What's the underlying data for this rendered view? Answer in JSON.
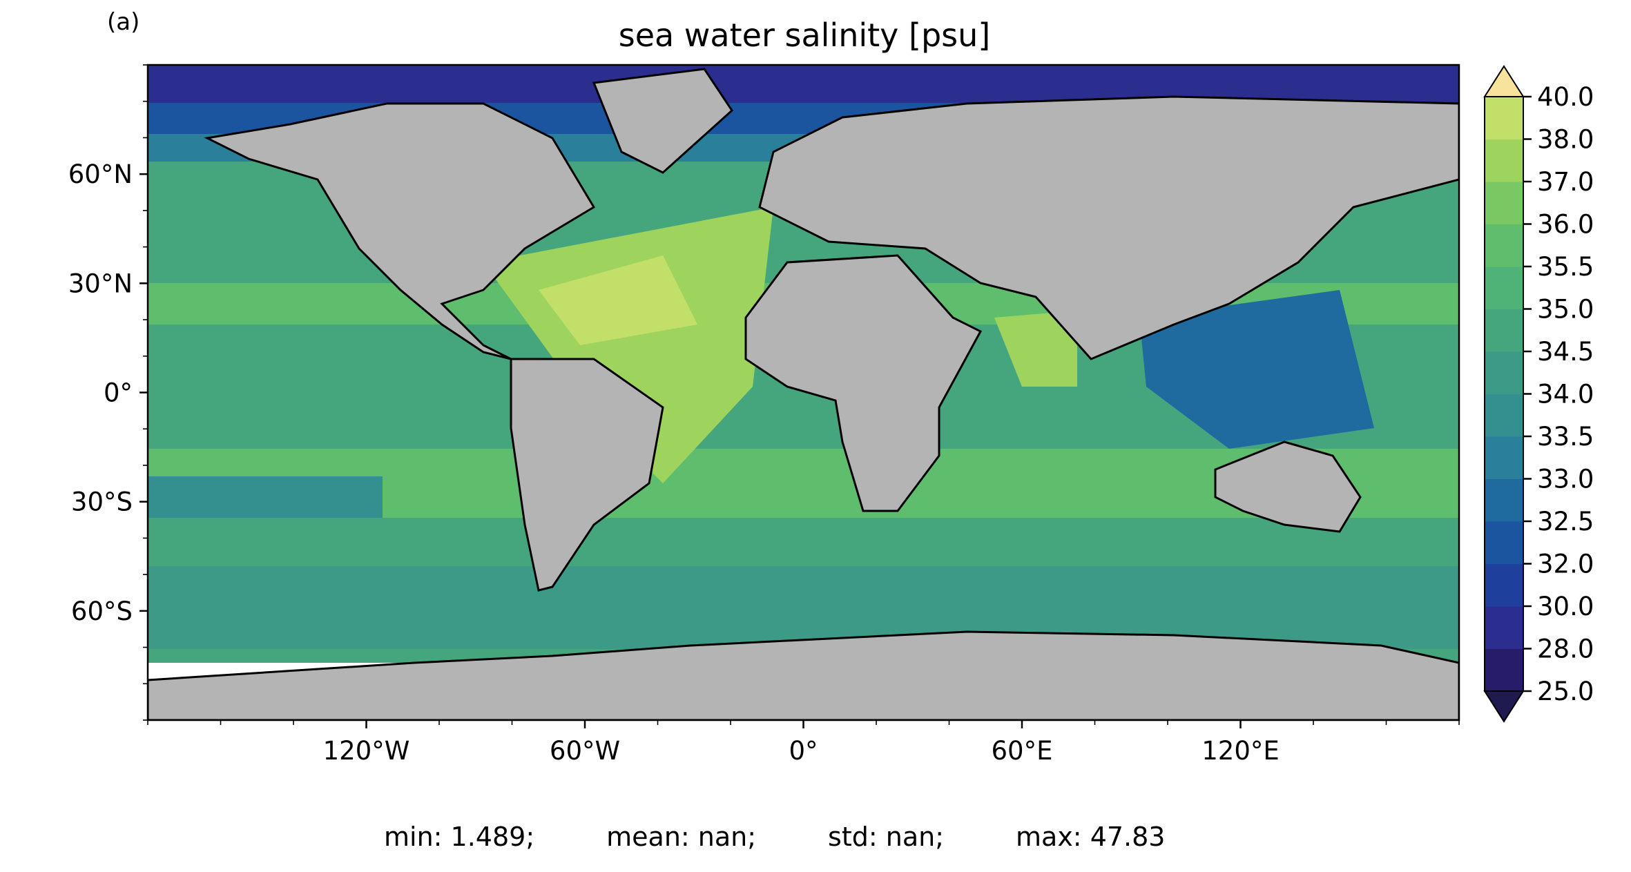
{
  "panel_label": "(a)",
  "title": "sea water salinity [psu]",
  "map": {
    "projection": "PlateCarree",
    "extent": [
      -180,
      180,
      -90,
      90
    ],
    "land_color": "#b4b4b4",
    "coast_color": "#000000",
    "no_data_color": "#ffffff",
    "lon_ticks": [
      {
        "value": -120,
        "label": "120°W"
      },
      {
        "value": -60,
        "label": "60°W"
      },
      {
        "value": 0,
        "label": "0°"
      },
      {
        "value": 60,
        "label": "60°E"
      },
      {
        "value": 120,
        "label": "120°E"
      }
    ],
    "lat_ticks": [
      {
        "value": 60,
        "label": "60°N"
      },
      {
        "value": 30,
        "label": "30°N"
      },
      {
        "value": 0,
        "label": "0°"
      },
      {
        "value": -30,
        "label": "30°S"
      },
      {
        "value": -60,
        "label": "60°S"
      }
    ]
  },
  "colorbar": {
    "extend": "both",
    "levels": [
      25.0,
      28.0,
      30.0,
      32.0,
      32.5,
      33.0,
      33.5,
      34.0,
      34.5,
      35.0,
      35.5,
      36.0,
      37.0,
      38.0,
      40.0
    ],
    "labels": [
      "25.0",
      "28.0",
      "30.0",
      "32.0",
      "32.5",
      "33.0",
      "33.5",
      "34.0",
      "34.5",
      "35.0",
      "35.5",
      "36.0",
      "37.0",
      "38.0",
      "40.0"
    ],
    "colors": [
      "#261c6a",
      "#2b2d8f",
      "#1f3f9c",
      "#1b55a0",
      "#1f6a9e",
      "#2a7f9a",
      "#348f8f",
      "#3c9a86",
      "#45a67e",
      "#4fb277",
      "#5fbe6e",
      "#79c863",
      "#9ed45d",
      "#c2df6a",
      "#e3e77c"
    ],
    "under_color": "#1f1a4f",
    "over_color": "#f7e39b"
  },
  "stats": {
    "min": "min: 1.489;",
    "mean": "mean: nan;",
    "std": "std: nan;",
    "max": "max: 47.83"
  }
}
